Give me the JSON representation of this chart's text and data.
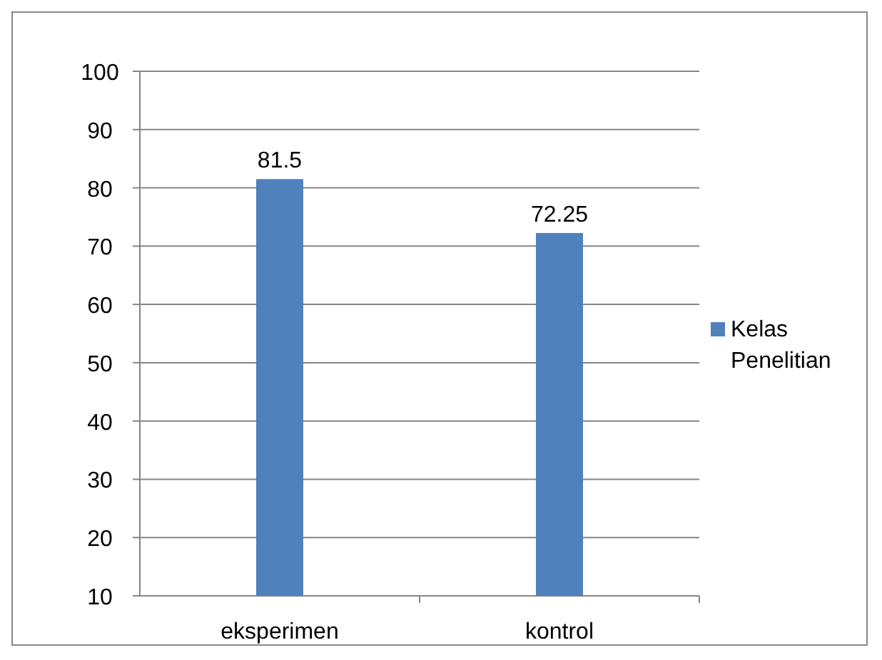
{
  "chart_data": {
    "type": "bar",
    "categories": [
      "eksperimen",
      "kontrol"
    ],
    "series": [
      {
        "name": "Kelas Penelitian",
        "color": "#4f81bd",
        "values": [
          81.5,
          72.25
        ]
      }
    ],
    "ylim": [
      10,
      100
    ],
    "yticks": [
      10,
      20,
      30,
      40,
      50,
      60,
      70,
      80,
      90,
      100
    ],
    "grid": "y",
    "legend": "right",
    "data_labels": true
  }
}
